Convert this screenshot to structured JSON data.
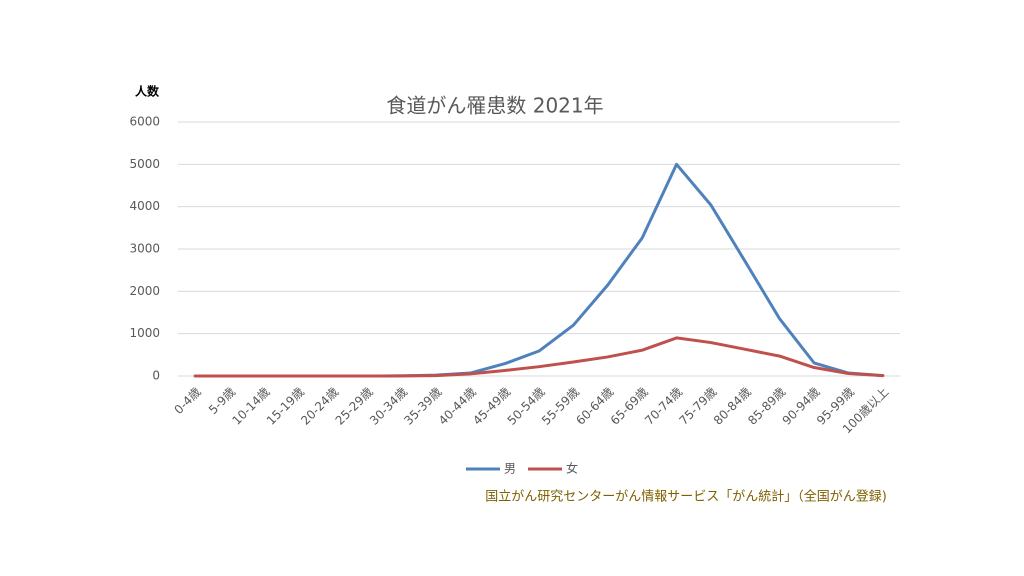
{
  "chart_data": {
    "type": "line",
    "title": "食道がん罹患数 2021年",
    "y_label": "人数",
    "source": "国立がん研究センターがん情報サービス「がん統計」（全国がん登録)",
    "categories": [
      "0-4歳",
      "5-9歳",
      "10-14歳",
      "15-19歳",
      "20-24歳",
      "25-29歳",
      "30-34歳",
      "35-39歳",
      "40-44歳",
      "45-49歳",
      "50-54歳",
      "55-59歳",
      "60-64歳",
      "65-69歳",
      "70-74歳",
      "75-79歳",
      "80-84歳",
      "85-89歳",
      "90-94歳",
      "95-99歳",
      "100歳以上"
    ],
    "series": [
      {
        "name": "男",
        "color": "#4f81bd",
        "values": [
          0,
          0,
          0,
          0,
          0,
          0,
          2,
          20,
          70,
          290,
          590,
          1200,
          2150,
          3260,
          5000,
          4040,
          2700,
          1350,
          310,
          70,
          10
        ]
      },
      {
        "name": "女",
        "color": "#c0504d",
        "values": [
          0,
          0,
          0,
          0,
          0,
          0,
          2,
          10,
          50,
          130,
          220,
          330,
          450,
          610,
          900,
          790,
          630,
          470,
          200,
          60,
          10
        ]
      }
    ],
    "ylim": [
      0,
      6000
    ],
    "yticks": [
      0,
      1000,
      2000,
      3000,
      4000,
      5000,
      6000
    ],
    "grid": true,
    "legend": "bottom"
  }
}
